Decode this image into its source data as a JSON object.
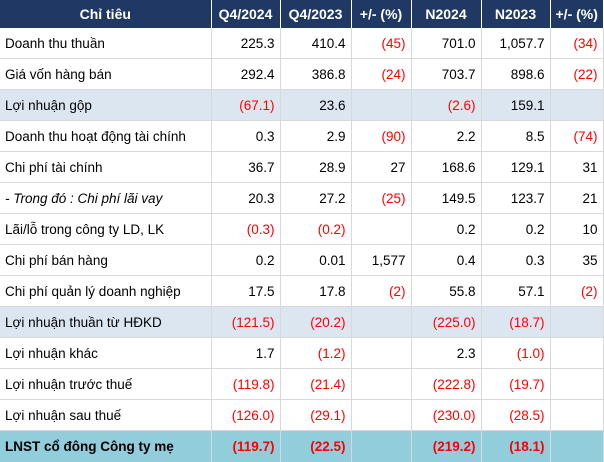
{
  "header": [
    "Chỉ tiêu",
    "Q4/2024",
    "Q4/2023",
    "+/- (%)",
    "N2024",
    "N2023",
    "+/- (%)"
  ],
  "rows": [
    {
      "cells": [
        "Doanh thu thuần",
        "225.3",
        "410.4",
        "(45)",
        "701.0",
        "1,057.7",
        "(34)"
      ],
      "style": ""
    },
    {
      "cells": [
        "Giá vốn hàng bán",
        "292.4",
        "386.8",
        "(24)",
        "703.7",
        "898.6",
        "(22)"
      ],
      "style": ""
    },
    {
      "cells": [
        "Lợi nhuận gộp",
        "(67.1)",
        "23.6",
        "",
        "(2.6)",
        "159.1",
        ""
      ],
      "style": "hl"
    },
    {
      "cells": [
        "Doanh thu hoạt động tài chính",
        "0.3",
        "2.9",
        "(90)",
        "2.2",
        "8.5",
        "(74)"
      ],
      "style": ""
    },
    {
      "cells": [
        "Chi phí tài chính",
        "36.7",
        "28.9",
        "27",
        "168.6",
        "129.1",
        "31"
      ],
      "style": ""
    },
    {
      "cells": [
        "- Trong đó : Chi phí lãi vay",
        "20.3",
        "27.2",
        "(25)",
        "149.5",
        "123.7",
        "21"
      ],
      "style": "it"
    },
    {
      "cells": [
        "Lãi/lỗ trong công ty LD, LK",
        "(0.3)",
        "(0.2)",
        "",
        "0.2",
        "0.2",
        "10"
      ],
      "style": ""
    },
    {
      "cells": [
        "Chi phí bán hàng",
        "0.2",
        "0.01",
        "1,577",
        "0.4",
        "0.3",
        "35"
      ],
      "style": ""
    },
    {
      "cells": [
        "Chi phí quản lý doanh nghiệp",
        "17.5",
        "17.8",
        "(2)",
        "55.8",
        "57.1",
        "(2)"
      ],
      "style": ""
    },
    {
      "cells": [
        "Lợi nhuận thuần từ HĐKD",
        "(121.5)",
        "(20.2)",
        "",
        "(225.0)",
        "(18.7)",
        ""
      ],
      "style": "hl"
    },
    {
      "cells": [
        "Lợi nhuận khác",
        "1.7",
        "(1.2)",
        "",
        "2.3",
        "(1.0)",
        ""
      ],
      "style": ""
    },
    {
      "cells": [
        "Lợi nhuận trước thuế",
        "(119.8)",
        "(21.4)",
        "",
        "(222.8)",
        "(19.7)",
        ""
      ],
      "style": ""
    },
    {
      "cells": [
        "Lợi nhuận sau thuế",
        "(126.0)",
        "(29.1)",
        "",
        "(230.0)",
        "(28.5)",
        ""
      ],
      "style": ""
    },
    {
      "cells": [
        "LNST cổ đông Công ty mẹ",
        "(119.7)",
        "(22.5)",
        "",
        "(219.2)",
        "(18.1)",
        ""
      ],
      "style": "em"
    }
  ],
  "colors": {
    "header_bg": "#1f3864",
    "highlight_bg": "#dce6f1",
    "emphasis_bg": "#92cddc",
    "negative_text": "#ff0000"
  }
}
